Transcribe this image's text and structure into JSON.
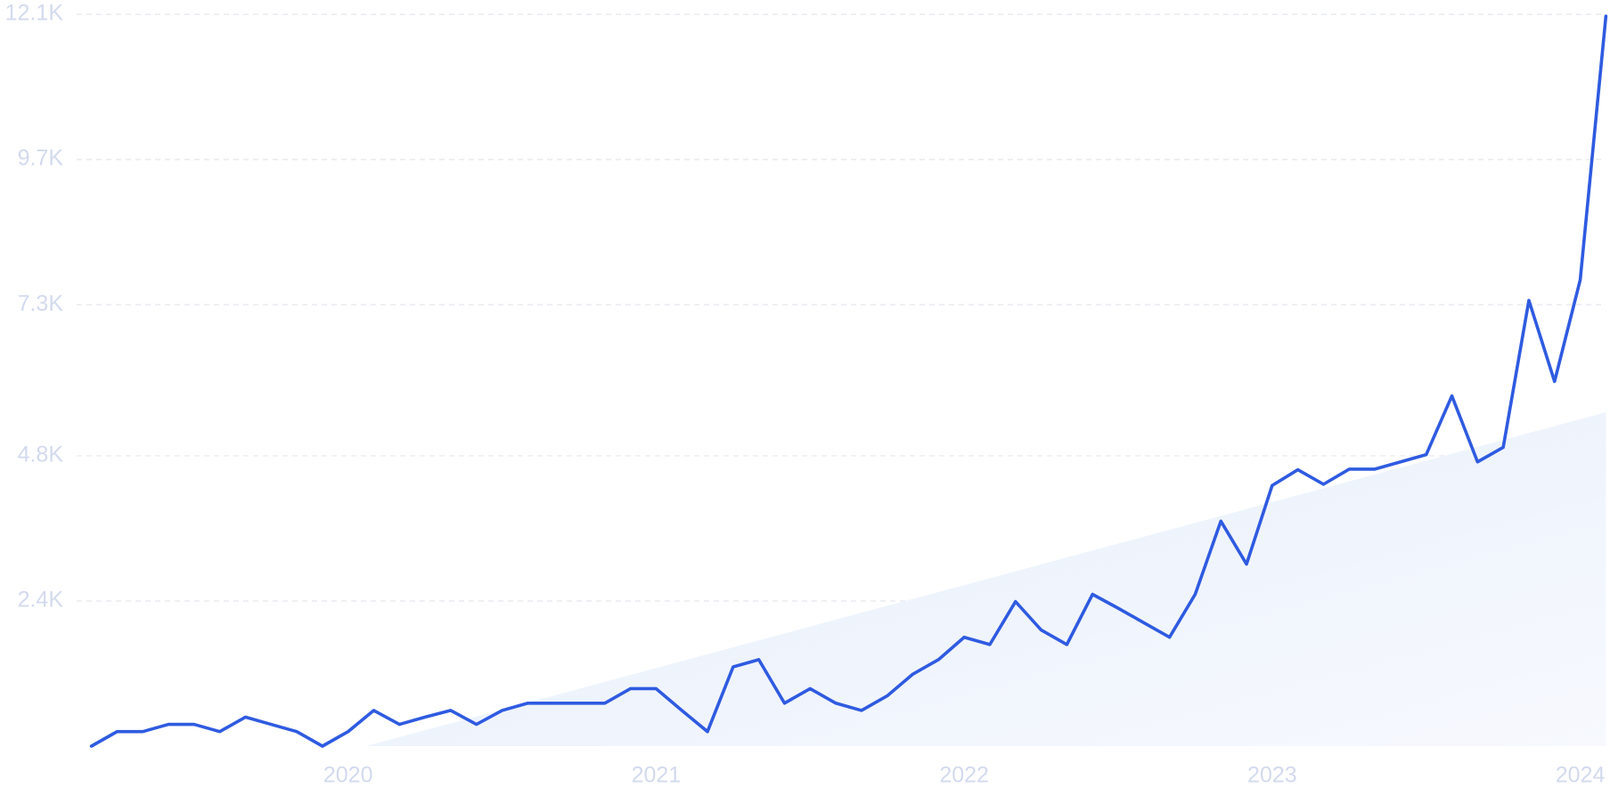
{
  "chart_data": {
    "type": "line",
    "categories": [
      null,
      null,
      null,
      null,
      null,
      null,
      null,
      null,
      null,
      null,
      "2020",
      null,
      null,
      null,
      null,
      null,
      null,
      null,
      null,
      null,
      null,
      null,
      "2021",
      null,
      null,
      null,
      null,
      null,
      null,
      null,
      null,
      null,
      null,
      null,
      "2022",
      null,
      null,
      null,
      null,
      null,
      null,
      null,
      null,
      null,
      null,
      null,
      "2023",
      null,
      null,
      null,
      null,
      null,
      null,
      null,
      null,
      null,
      null,
      null,
      "2024",
      null
    ],
    "values": [
      0,
      240,
      240,
      360,
      360,
      240,
      480,
      360,
      240,
      0,
      240,
      590,
      360,
      480,
      590,
      360,
      590,
      710,
      710,
      710,
      710,
      950,
      950,
      590,
      240,
      1310,
      1430,
      710,
      950,
      710,
      590,
      830,
      1190,
      1430,
      1800,
      1680,
      2390,
      1920,
      1680,
      2510,
      2280,
      2040,
      1800,
      2510,
      3720,
      3010,
      4310,
      4570,
      4330,
      4580,
      4580,
      4700,
      4820,
      5790,
      4700,
      4940,
      7370,
      6030,
      7710,
      12070
    ],
    "color": "#2f5be0",
    "trend": {
      "x": [
        10.7,
        59
      ],
      "values": [
        0,
        5520
      ],
      "color": "#e8f0fc"
    },
    "ylim": [
      0,
      12100
    ],
    "yticks": [
      {
        "value": 2400,
        "label": "2.4K"
      },
      {
        "value": 4800,
        "label": "4.8K"
      },
      {
        "value": 7300,
        "label": "7.3K"
      },
      {
        "value": 9700,
        "label": "9.7K"
      },
      {
        "value": 12100,
        "label": "12.1K"
      }
    ],
    "grid": true
  }
}
